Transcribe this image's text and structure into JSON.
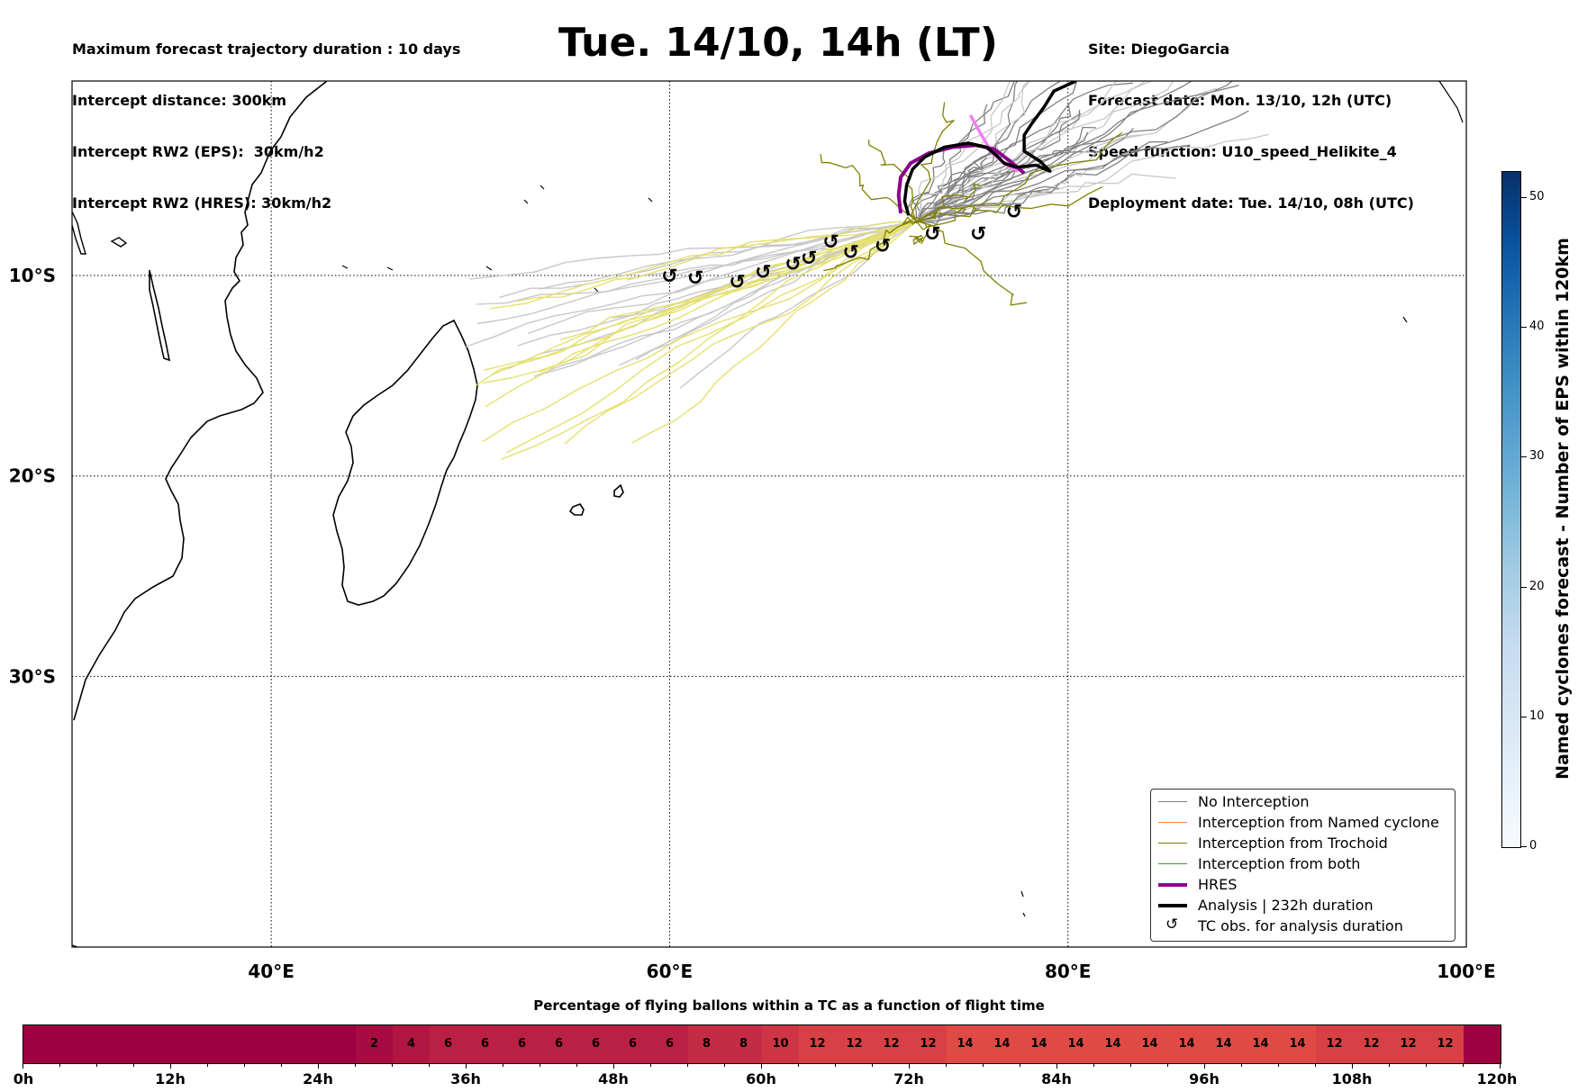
{
  "header": {
    "info_left": [
      "Maximum forecast trajectory duration : 10 days",
      "Intercept distance: 300km",
      "Intercept RW2 (EPS):  30km/h2",
      "Intercept RW2 (HRES): 30km/h2"
    ],
    "title": "Tue. 14/10, 14h (LT)",
    "info_right": [
      "Site: DiegoGarcia",
      "Forecast date: Mon. 13/10, 12h (UTC)",
      "Speed function: U10_speed_Helikite_4",
      "Deployment date: Tue. 14/10, 08h (UTC)"
    ]
  },
  "colors": {
    "no_interception": "#808080",
    "named_cyclone": "#ff7f50",
    "trochoid": "#808000",
    "both": "#2ca02c",
    "hres": "#8b008b",
    "hres_early": "#ee82ee",
    "analysis": "#000000",
    "eps_light": "#c8c8c8",
    "eps_yellow": "#e6e070",
    "pct_dark": "#9e0142",
    "pct_light": "#e04a45"
  },
  "chart_data": [
    {
      "type": "map-trajectories",
      "map_extent": {
        "lon": [
          30,
          100
        ],
        "lat": [
          -43.5,
          -0.3
        ]
      },
      "lon_ticks": [
        "40°E",
        "60°E",
        "80°E",
        "100°E"
      ],
      "lat_ticks": [
        "10°S",
        "20°S",
        "30°S"
      ],
      "grid": true,
      "legend_placement": "lower-right",
      "legend": [
        {
          "label": "No Interception",
          "color_key": "no_interception",
          "style": "thin"
        },
        {
          "label": "Interception from Named cyclone",
          "color_key": "named_cyclone",
          "style": "thin"
        },
        {
          "label": "Interception from Trochoid",
          "color_key": "trochoid",
          "style": "thin"
        },
        {
          "label": "Interception from both",
          "color_key": "both",
          "style": "thin"
        },
        {
          "label": "HRES",
          "color_key": "hres",
          "style": "thick"
        },
        {
          "label": "Analysis | 232h duration",
          "color_key": "analysis",
          "style": "thick"
        },
        {
          "label": "TC obs. for analysis duration",
          "glyph": "↺",
          "style": "marker"
        }
      ],
      "tc_observations": [
        [
          60.0,
          -10.0
        ],
        [
          61.3,
          -10.1
        ],
        [
          63.4,
          -10.3
        ],
        [
          64.7,
          -9.8
        ],
        [
          66.2,
          -9.4
        ],
        [
          67.0,
          -9.1
        ],
        [
          68.1,
          -8.3
        ],
        [
          69.1,
          -8.8
        ],
        [
          70.7,
          -8.5
        ],
        [
          73.2,
          -7.9
        ],
        [
          75.5,
          -7.9
        ],
        [
          77.3,
          -6.8
        ]
      ],
      "analysis_track": [
        [
          72.0,
          -7.0
        ],
        [
          71.8,
          -6.3
        ],
        [
          71.9,
          -5.5
        ],
        [
          72.2,
          -4.7
        ],
        [
          72.8,
          -4.1
        ],
        [
          73.8,
          -3.6
        ],
        [
          75.0,
          -3.4
        ],
        [
          75.9,
          -3.6
        ],
        [
          76.4,
          -4.0
        ],
        [
          76.8,
          -4.4
        ],
        [
          77.4,
          -4.6
        ],
        [
          78.4,
          -4.5
        ],
        [
          79.1,
          -4.8
        ],
        [
          78.6,
          -4.3
        ],
        [
          77.8,
          -3.8
        ],
        [
          77.8,
          -3.0
        ],
        [
          78.2,
          -2.4
        ],
        [
          78.8,
          -1.6
        ],
        [
          79.3,
          -0.8
        ],
        [
          80.4,
          -0.3
        ]
      ],
      "hres_track": [
        [
          71.6,
          -6.9
        ],
        [
          71.5,
          -6.0
        ],
        [
          71.6,
          -5.1
        ],
        [
          72.1,
          -4.4
        ],
        [
          73.0,
          -3.9
        ],
        [
          74.2,
          -3.6
        ],
        [
          75.4,
          -3.5
        ],
        [
          76.3,
          -3.7
        ],
        [
          77.1,
          -4.3
        ],
        [
          77.8,
          -4.9
        ]
      ],
      "hres_track_early": [
        [
          75.1,
          -2.0
        ],
        [
          75.6,
          -2.9
        ],
        [
          76.2,
          -3.9
        ],
        [
          76.9,
          -4.5
        ],
        [
          77.5,
          -4.8
        ]
      ],
      "colorbar": {
        "label": "Named cyclones forecast - Number of EPS within 120km",
        "range": [
          0,
          52
        ],
        "ticks": [
          0,
          10,
          20,
          30,
          40,
          50
        ]
      }
    },
    {
      "type": "heatmap",
      "title": "Percentage of flying ballons within a TC as a function of flight time",
      "x_range_hours": [
        0,
        120
      ],
      "x_tick_labels": [
        "0h",
        "12h",
        "24h",
        "36h",
        "48h",
        "60h",
        "72h",
        "84h",
        "96h",
        "108h",
        "120h"
      ],
      "bin_hours": 3,
      "values": [
        0,
        0,
        0,
        0,
        0,
        0,
        0,
        0,
        0,
        2,
        4,
        6,
        6,
        6,
        6,
        6,
        6,
        6,
        8,
        8,
        10,
        12,
        12,
        12,
        12,
        14,
        14,
        14,
        14,
        14,
        14,
        14,
        14,
        14,
        14,
        12,
        12,
        12,
        12
      ]
    }
  ]
}
